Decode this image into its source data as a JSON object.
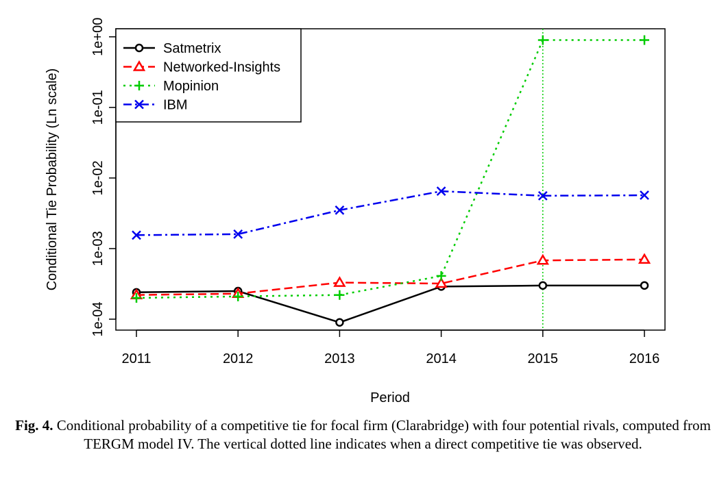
{
  "chart_data": {
    "type": "line",
    "xlabel": "Period",
    "ylabel": "Conditional Tie Probability (Ln scale)",
    "y_scale": "log",
    "ylim": [
      7e-05,
      1.3
    ],
    "x": [
      2011,
      2012,
      2013,
      2014,
      2015,
      2016
    ],
    "x_tick_labels": [
      "2011",
      "2012",
      "2013",
      "2014",
      "2015",
      "2016"
    ],
    "y_ticks": [
      0.0001,
      0.001,
      0.01,
      0.1,
      1
    ],
    "y_tick_labels": [
      "1e-04",
      "1e-03",
      "1e-02",
      "1e-01",
      "1e+00"
    ],
    "legend_position": "top-left",
    "vertical_line": {
      "x": 2015,
      "style": "dotted",
      "color": "#00cc00"
    },
    "series": [
      {
        "name": "Satmetrix",
        "color": "#000000",
        "marker": "circle",
        "dash": "",
        "values": [
          0.00024,
          0.00025,
          9e-05,
          0.00029,
          0.0003,
          0.0003
        ]
      },
      {
        "name": "Networked-Insights",
        "color": "#ff0000",
        "marker": "triangle",
        "dash": "12,6",
        "values": [
          0.00022,
          0.00023,
          0.00033,
          0.00032,
          0.00068,
          0.0007
        ]
      },
      {
        "name": "Mopinion",
        "color": "#00cc00",
        "marker": "plus",
        "dash": "3,6",
        "values": [
          0.0002,
          0.00021,
          0.00022,
          0.00041,
          0.9,
          0.9
        ]
      },
      {
        "name": "IBM",
        "color": "#0000ee",
        "marker": "cross",
        "dash": "12,5,3,5",
        "values": [
          0.00155,
          0.0016,
          0.0035,
          0.0065,
          0.0056,
          0.0057
        ]
      }
    ]
  },
  "caption": {
    "label": "Fig. 4.",
    "text": " Conditional probability of a competitive tie for focal firm (Clarabridge) with four potential rivals, computed from TERGM model IV. The vertical dotted line indicates when a direct competitive tie was observed."
  }
}
